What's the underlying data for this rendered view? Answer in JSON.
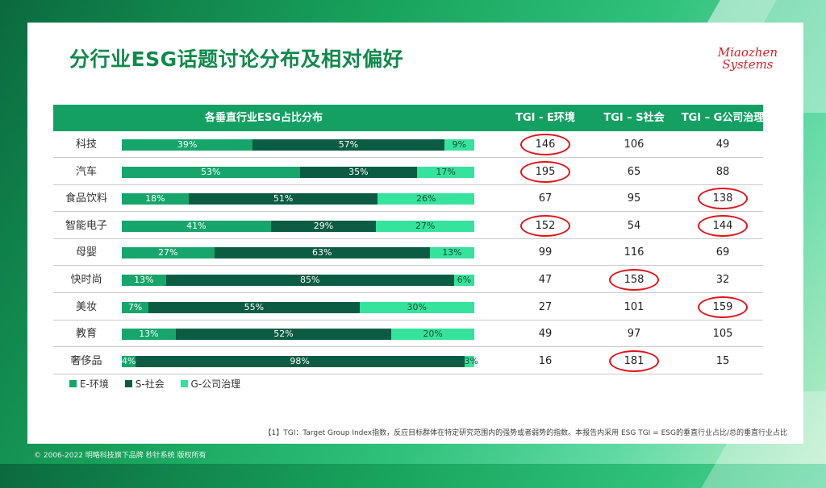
{
  "slide": {
    "title": "分行业ESG话题讨论分布及相对偏好",
    "logo_line1": "Miaozhen",
    "logo_line2": "Systems",
    "footnote": "【1】TGI：Target Group Index指数，反应目标群体在特定研究范围内的强势或者弱势的指数。本报告内采用 ESG TGI = ESG的垂直行业占比/总的垂直行业占比",
    "copyright": "© 2006-2022 明略科技旗下品牌 秒针系统 版权所有"
  },
  "table": {
    "headers": [
      "各垂直行业ESG占比分布",
      "TGI - E环境",
      "TGI – S社会",
      "TGI – G公司治理"
    ]
  },
  "legend": [
    "E-环境",
    "S-社会",
    "G-公司治理"
  ],
  "colors": {
    "e": "#16a56b",
    "s": "#0b5c42",
    "g": "#35e39c",
    "highlight": "#e0141a",
    "header": "#14a063"
  },
  "chart_data": {
    "type": "bar",
    "stacked": true,
    "orientation": "horizontal",
    "categories": [
      "科技",
      "汽车",
      "食品饮料",
      "智能电子",
      "母婴",
      "快时尚",
      "美妆",
      "教育",
      "奢侈品"
    ],
    "series": [
      {
        "name": "E-环境",
        "values": [
          39,
          53,
          18,
          41,
          27,
          13,
          7,
          13,
          4
        ]
      },
      {
        "name": "S-社会",
        "values": [
          57,
          35,
          51,
          29,
          63,
          85,
          55,
          52,
          98
        ]
      },
      {
        "name": "G-公司治理",
        "values": [
          9,
          17,
          26,
          27,
          13,
          6,
          30,
          20,
          3
        ]
      }
    ],
    "labels": [
      [
        "39%",
        "57%",
        "9%"
      ],
      [
        "53%",
        "35%",
        "17%"
      ],
      [
        "18%",
        "51%",
        "26%"
      ],
      [
        "41%",
        "29%",
        "27%"
      ],
      [
        "27%",
        "63%",
        "13%"
      ],
      [
        "13%",
        "85%",
        "6%"
      ],
      [
        "7%",
        "55%",
        "30%"
      ],
      [
        "13%",
        "52%",
        "20%"
      ],
      [
        "4%",
        "98%",
        "3%"
      ]
    ],
    "tgi": {
      "E": [
        146,
        195,
        67,
        152,
        99,
        47,
        27,
        49,
        16
      ],
      "S": [
        106,
        65,
        95,
        54,
        116,
        158,
        101,
        97,
        181
      ],
      "G": [
        49,
        88,
        138,
        144,
        69,
        32,
        159,
        105,
        15
      ]
    },
    "highlighted": {
      "E": [
        "科技",
        "汽车",
        "智能电子"
      ],
      "S": [
        "快时尚",
        "奢侈品"
      ],
      "G": [
        "食品饮料",
        "智能电子",
        "美妆"
      ]
    },
    "legend_position": "bottom-left"
  }
}
